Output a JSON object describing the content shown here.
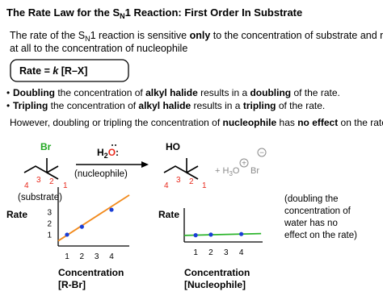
{
  "title": {
    "parts": [
      "The Rate Law for the S",
      "N",
      "1 Reaction: First Order In Substrate"
    ]
  },
  "intro": {
    "line1": [
      "The rate of the S",
      "N",
      "1 reaction is sensitive ",
      "only",
      " to the concentration of substrate and not"
    ],
    "line2": "at all to the concentration of nucleophile"
  },
  "rate_law": {
    "parts": [
      "Rate = ",
      "k",
      " [R–X]"
    ]
  },
  "bullets": [
    [
      "Doubling",
      " the concentration of ",
      "alkyl halide",
      " results in a ",
      "doubling",
      " of the rate."
    ],
    [
      "Tripling",
      " the concentration of ",
      "alkyl halide",
      " results in a ",
      "tripling",
      " of the rate."
    ]
  ],
  "conclusion": [
    "However, doubling or tripling the concentration of ",
    "nucleophile",
    " has ",
    "no effect",
    " on the rate."
  ],
  "reaction": {
    "substrate": {
      "atom": "Br",
      "numbers": [
        "4",
        "3",
        "2",
        "1"
      ],
      "label": "(substrate)"
    },
    "reagent": {
      "parts": [
        "H",
        "2",
        "O",
        ":"
      ],
      "label": "(nucleophile)"
    },
    "product": {
      "atom": "HO",
      "numbers": [
        "4",
        "3",
        "2",
        "1"
      ]
    },
    "byproducts": {
      "parts": [
        "+ H",
        "3",
        "O",
        "+",
        "Br",
        "−"
      ]
    }
  },
  "chart_data": [
    {
      "type": "scatter",
      "y_label": "Rate",
      "x_label": "Concentration",
      "x_sublabel": "[R-Br]",
      "x": [
        1,
        2,
        4
      ],
      "values": [
        1,
        1.7,
        3.2
      ],
      "color": "#1a3fd6",
      "trendline": {
        "x": [
          0.4,
          5.2
        ],
        "y": [
          0.45,
          4.5
        ],
        "color": "#f28a1c"
      },
      "xlim": [
        0.4,
        5.2
      ],
      "ylim": [
        0,
        5.2
      ],
      "xticks": [
        1,
        2,
        3,
        4
      ],
      "yticks": [
        1,
        2,
        3
      ]
    },
    {
      "type": "scatter",
      "y_label": "Rate",
      "x_label": "Concentration",
      "x_sublabel": "[Nucleophile]",
      "x": [
        1,
        2,
        4
      ],
      "values": [
        0.6,
        0.65,
        0.7
      ],
      "color": "#1a3fd6",
      "trendline": {
        "x": [
          0.25,
          5.3
        ],
        "y": [
          0.58,
          0.74
        ],
        "color": "#2db52d"
      },
      "xlim": [
        0.25,
        5.4
      ],
      "ylim": [
        0,
        3
      ],
      "xticks": [
        1,
        2,
        3,
        4
      ]
    }
  ],
  "note": [
    "(doubling the",
    "concentration of",
    "water has no",
    "effect on the rate)"
  ]
}
